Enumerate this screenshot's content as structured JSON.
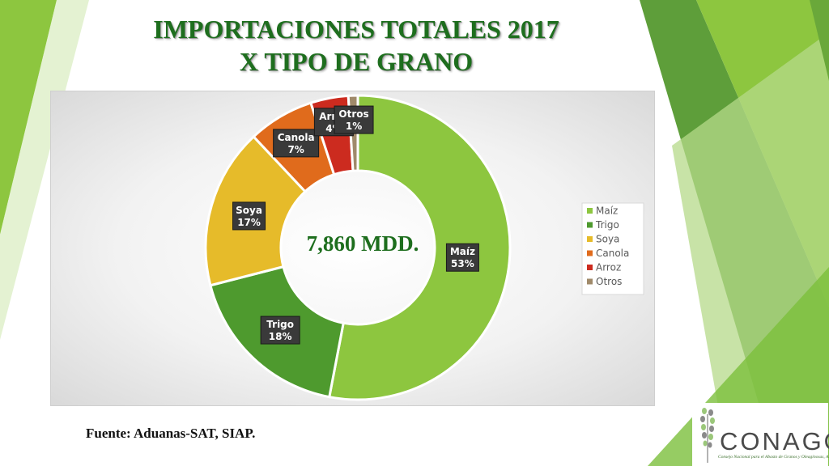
{
  "slide": {
    "title_line1": "IMPORTACIONES TOTALES 2017",
    "title_line2": "X TIPO DE GRANO",
    "center_total": "7,860 MDD.",
    "source": "Fuente: Aduanas-SAT, SIAP."
  },
  "logo": {
    "name": "CONAGO",
    "subtitle": "Consejo Nacional para el Abasto de Granos y Oleaginosas, A.C."
  },
  "colors": {
    "title_green": "#1e6e1e",
    "decor_light": "#8dc63f",
    "decor_dark": "#4f9a33"
  },
  "chart_data": {
    "type": "pie",
    "categories": [
      "Maíz",
      "Trigo",
      "Soya",
      "Canola",
      "Arroz",
      "Otros"
    ],
    "values": [
      53,
      18,
      17,
      7,
      4,
      1
    ],
    "unit": "%",
    "colors": [
      "#8dc63f",
      "#4e9a2e",
      "#e6bb2a",
      "#e06b1c",
      "#cc2b1f",
      "#a08a6a"
    ],
    "data_labels": [
      {
        "name": "Maíz",
        "pct": "53%"
      },
      {
        "name": "Trigo",
        "pct": "18%"
      },
      {
        "name": "Soya",
        "pct": "17%"
      },
      {
        "name": "Canola",
        "pct": "7%"
      },
      {
        "name": "Arroz",
        "pct": "4%"
      },
      {
        "name": "Otros",
        "pct": "1%"
      }
    ],
    "legend": [
      "Maíz",
      "Trigo",
      "Soya",
      "Canola",
      "Arroz",
      "Otros"
    ],
    "legend_position": "right",
    "donut": true
  }
}
